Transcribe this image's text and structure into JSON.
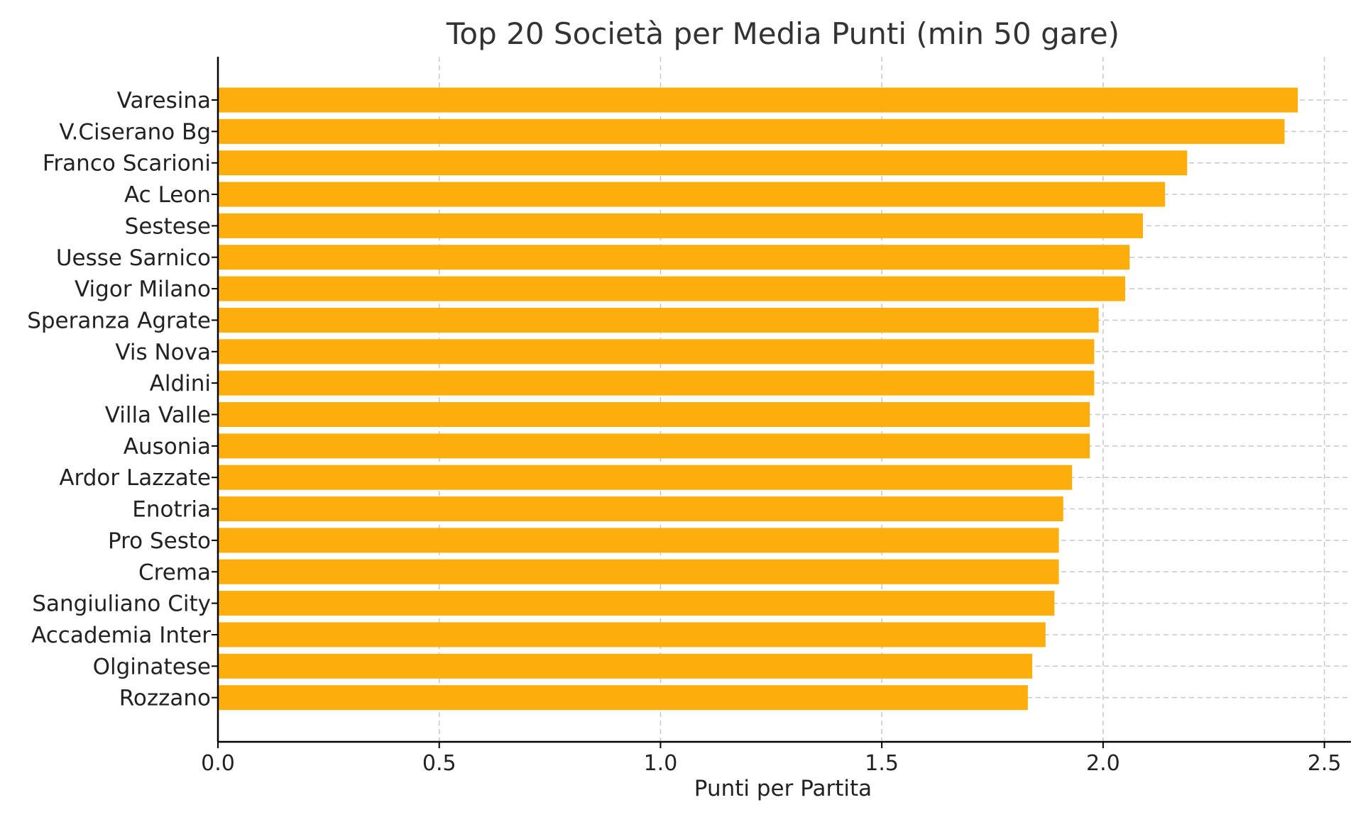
{
  "chart_data": {
    "type": "bar",
    "orientation": "horizontal",
    "title": "Top 20 Società per Media Punti (min 50 gare)",
    "xlabel": "Punti per Partita",
    "ylabel": "",
    "xlim": [
      0,
      2.56
    ],
    "xticks": [
      0.0,
      0.5,
      1.0,
      1.5,
      2.0,
      2.5
    ],
    "xtick_labels": [
      "0.0",
      "0.5",
      "1.0",
      "1.5",
      "2.0",
      "2.5"
    ],
    "grid": true,
    "bar_color": "#FBAE0C",
    "categories": [
      "Varesina",
      "V.Ciserano Bg",
      "Franco Scarioni",
      "Ac Leon",
      "Sestese",
      "Uesse Sarnico",
      "Vigor Milano",
      "Speranza Agrate",
      "Vis Nova",
      "Aldini",
      "Villa Valle",
      "Ausonia",
      "Ardor Lazzate",
      "Enotria",
      "Pro Sesto",
      "Crema",
      "Sangiuliano City",
      "Accademia Inter",
      "Olginatese",
      "Rozzano"
    ],
    "values": [
      2.44,
      2.41,
      2.19,
      2.14,
      2.09,
      2.06,
      2.05,
      1.99,
      1.98,
      1.98,
      1.97,
      1.97,
      1.93,
      1.91,
      1.9,
      1.9,
      1.89,
      1.87,
      1.84,
      1.83
    ]
  }
}
